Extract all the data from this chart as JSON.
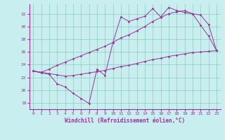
{
  "xlabel": "Windchill (Refroidissement éolien,°C)",
  "background_color": "#c8eef0",
  "grid_color": "#88ccbb",
  "line_color": "#993399",
  "xlim": [
    -0.5,
    23.5
  ],
  "ylim": [
    17.0,
    33.5
  ],
  "yticks": [
    18,
    20,
    22,
    24,
    26,
    28,
    30,
    32
  ],
  "xticks": [
    0,
    1,
    2,
    3,
    4,
    5,
    6,
    7,
    8,
    9,
    10,
    11,
    12,
    13,
    14,
    15,
    16,
    17,
    18,
    19,
    20,
    21,
    22,
    23
  ],
  "line1_x": [
    0,
    1,
    2,
    3,
    4,
    5,
    6,
    7,
    8,
    9,
    10,
    11,
    12,
    13,
    14,
    15,
    16,
    17,
    18,
    19,
    20,
    21,
    22,
    23
  ],
  "line1_y": [
    23.0,
    22.7,
    22.5,
    21.0,
    20.5,
    19.5,
    18.7,
    17.9,
    23.3,
    22.3,
    27.5,
    31.5,
    30.8,
    31.2,
    31.6,
    32.8,
    31.5,
    33.0,
    32.5,
    32.2,
    32.0,
    30.2,
    28.5,
    26.2
  ],
  "line2_x": [
    0,
    1,
    2,
    3,
    4,
    5,
    6,
    7,
    8,
    9,
    10,
    11,
    12,
    13,
    14,
    15,
    16,
    17,
    18,
    19,
    20,
    21,
    22,
    23
  ],
  "line2_y": [
    23.0,
    22.8,
    23.3,
    23.9,
    24.4,
    24.9,
    25.4,
    25.9,
    26.4,
    26.9,
    27.5,
    28.2,
    28.7,
    29.3,
    30.0,
    30.8,
    31.4,
    32.0,
    32.3,
    32.5,
    32.0,
    31.8,
    30.3,
    26.2
  ],
  "line3_x": [
    0,
    1,
    2,
    3,
    4,
    5,
    6,
    7,
    8,
    9,
    10,
    11,
    12,
    13,
    14,
    15,
    16,
    17,
    18,
    19,
    20,
    21,
    22,
    23
  ],
  "line3_y": [
    23.0,
    22.8,
    22.6,
    22.4,
    22.2,
    22.3,
    22.5,
    22.7,
    22.9,
    23.1,
    23.4,
    23.7,
    23.9,
    24.2,
    24.5,
    24.8,
    25.0,
    25.3,
    25.5,
    25.7,
    25.9,
    26.0,
    26.1,
    26.2
  ]
}
